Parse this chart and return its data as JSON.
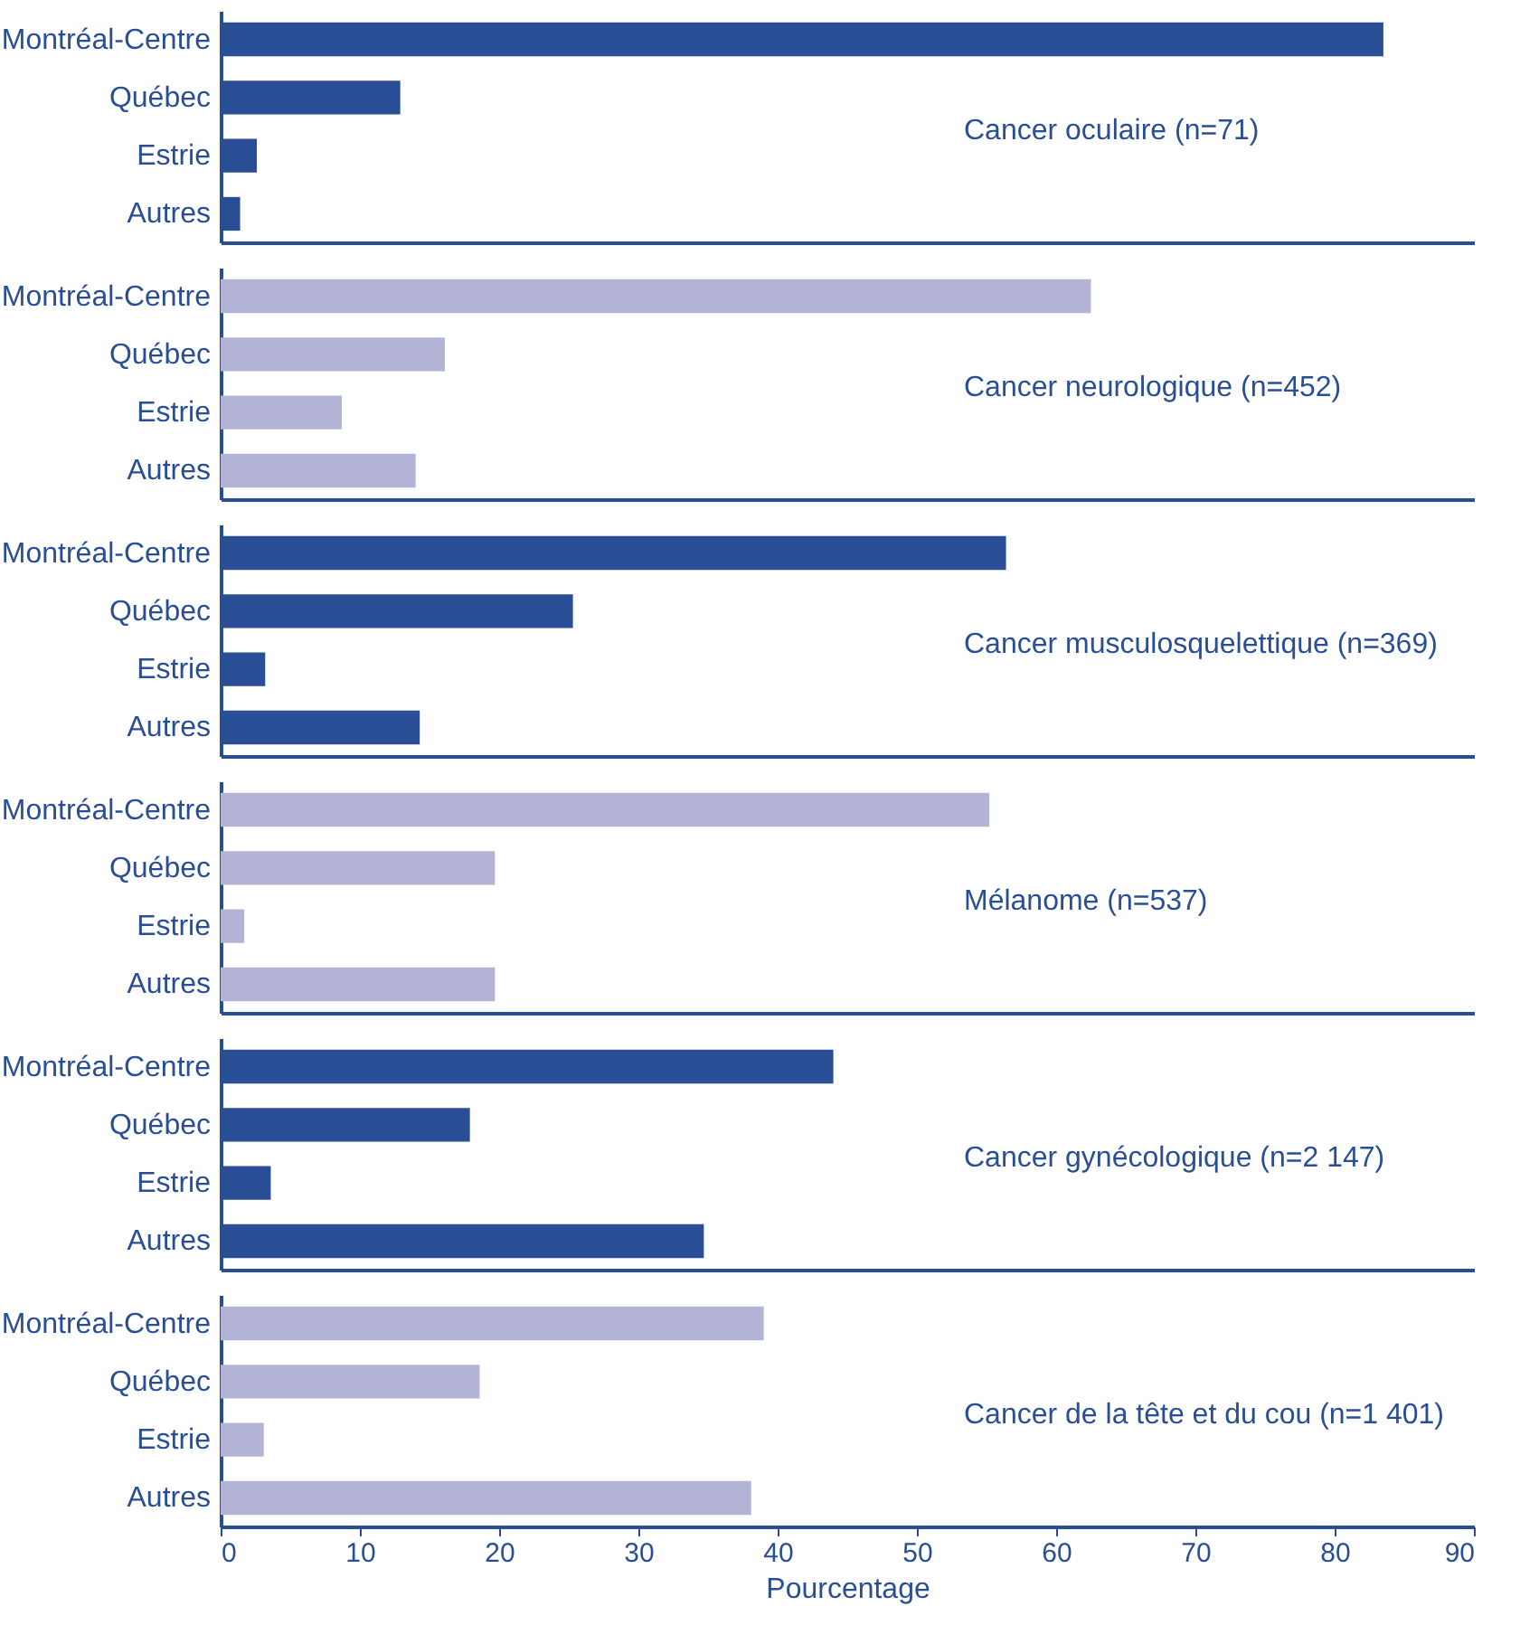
{
  "chart_data": [
    {
      "type": "bar",
      "orientation": "horizontal",
      "categories": [
        "Montréal-Centre",
        "Québec",
        "Estrie",
        "Autres"
      ],
      "values": [
        83.5,
        12.9,
        2.6,
        1.4
      ],
      "color": "#2a4e96",
      "xlim": [
        0,
        90
      ],
      "xticks": [
        0,
        10,
        20,
        30,
        40,
        50,
        60,
        70,
        80,
        90
      ],
      "tick_labels": "y",
      "grid": false,
      "annotations": [
        "Cancer oculaire (n=71)"
      ]
    },
    {
      "type": "bar",
      "orientation": "horizontal",
      "categories": [
        "Montréal-Centre",
        "Québec",
        "Estrie",
        "Autres"
      ],
      "values": [
        62.5,
        16.1,
        8.7,
        14.0
      ],
      "color": "#b3b3d6",
      "xlim": [
        0,
        90
      ],
      "xticks": [
        0,
        10,
        20,
        30,
        40,
        50,
        60,
        70,
        80,
        90
      ],
      "tick_labels": "y",
      "grid": false,
      "annotations": [
        "Cancer neurologique (n=452)"
      ]
    },
    {
      "type": "bar",
      "orientation": "horizontal",
      "categories": [
        "Montréal-Centre",
        "Québec",
        "Estrie",
        "Autres"
      ],
      "values": [
        56.4,
        25.3,
        3.2,
        14.3
      ],
      "color": "#2a4e96",
      "xlim": [
        0,
        90
      ],
      "xticks": [
        0,
        10,
        20,
        30,
        40,
        50,
        60,
        70,
        80,
        90
      ],
      "tick_labels": "y",
      "grid": false,
      "annotations": [
        "Cancer musculosquelettique (n=369)"
      ]
    },
    {
      "type": "bar",
      "orientation": "horizontal",
      "categories": [
        "Montréal-Centre",
        "Québec",
        "Estrie",
        "Autres"
      ],
      "values": [
        55.2,
        19.7,
        1.7,
        19.7
      ],
      "color": "#b3b3d6",
      "xlim": [
        0,
        90
      ],
      "xticks": [
        0,
        10,
        20,
        30,
        40,
        50,
        60,
        70,
        80,
        90
      ],
      "tick_labels": "y",
      "grid": false,
      "annotations": [
        "Mélanome (n=537)"
      ]
    },
    {
      "type": "bar",
      "orientation": "horizontal",
      "categories": [
        "Montréal-Centre",
        "Québec",
        "Estrie",
        "Autres"
      ],
      "values": [
        44.0,
        17.9,
        3.6,
        34.7
      ],
      "color": "#2a4e96",
      "xlim": [
        0,
        90
      ],
      "xticks": [
        0,
        10,
        20,
        30,
        40,
        50,
        60,
        70,
        80,
        90
      ],
      "tick_labels": "y",
      "grid": false,
      "annotations": [
        "Cancer gynécologique (n=2 147)"
      ]
    },
    {
      "type": "bar",
      "orientation": "horizontal",
      "categories": [
        "Montréal-Centre",
        "Québec",
        "Estrie",
        "Autres"
      ],
      "values": [
        39.0,
        18.6,
        3.1,
        38.1
      ],
      "color": "#b3b3d6",
      "xlim": [
        0,
        90
      ],
      "xticks": [
        0,
        10,
        20,
        30,
        40,
        50,
        60,
        70,
        80,
        90
      ],
      "grid": false,
      "xlabel": "Pourcentage",
      "annotations": [
        "Cancer de la tête et du cou (n=1 401)"
      ]
    }
  ]
}
